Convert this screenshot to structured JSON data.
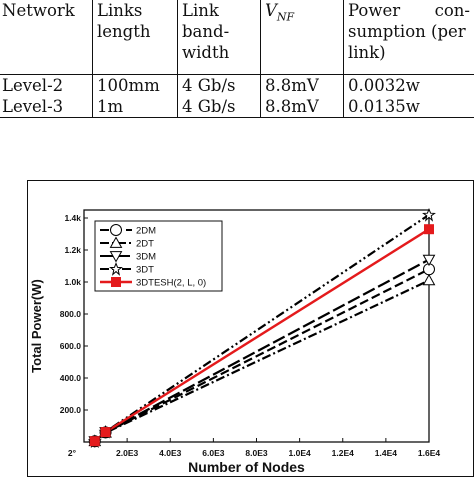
{
  "table": {
    "headers": {
      "network": "Network",
      "links_length": [
        "Links",
        "length"
      ],
      "link_bandwidth": [
        "Link",
        "band-",
        "width"
      ],
      "vnf_main": "V",
      "vnf_sub": "NF",
      "power": [
        "Power",
        "con-",
        "sumption (per",
        "link)"
      ]
    },
    "rows": [
      {
        "network": "Level-2",
        "length": "100mm",
        "bandwidth": "4 Gb/s",
        "vnf": "8.8mV",
        "power": "0.0032w"
      },
      {
        "network": "Level-3",
        "length": "1m",
        "bandwidth": "4 Gb/s",
        "vnf": "8.8mV",
        "power": "0.0135w"
      }
    ]
  },
  "chart_data": {
    "type": "line",
    "xlabel": "Number of Nodes",
    "ylabel": "Total Power(W)",
    "xlim": [
      0,
      16384
    ],
    "ylim": [
      0,
      1450
    ],
    "x_tick_labels": [
      "2°",
      "2.0E3",
      "4.0E3",
      "6.0E3",
      "8.0E3",
      "1.0E4",
      "1.2E4",
      "1.4E4",
      "1.6E4"
    ],
    "x_tick_values": [
      0,
      2048,
      4096,
      6144,
      8192,
      10240,
      12288,
      14336,
      16384
    ],
    "y_tick_labels": [
      "0",
      "200.0",
      "400.0",
      "600.0",
      "800.0",
      "1.0k",
      "1.2k",
      "1.4k"
    ],
    "y_tick_values": [
      0,
      200,
      400,
      600,
      800,
      1000,
      1200,
      1400
    ],
    "legend_position": "top-left",
    "series": [
      {
        "name": "2DM",
        "x": [
          512,
          1024,
          16384
        ],
        "y": [
          5,
          60,
          1080
        ],
        "color": "#000000",
        "dash": "dash",
        "marker": "circle"
      },
      {
        "name": "2DT",
        "x": [
          512,
          1024,
          16384
        ],
        "y": [
          5,
          58,
          1010
        ],
        "color": "#000000",
        "dash": "dashdot",
        "marker": "triangle-up"
      },
      {
        "name": "3DM",
        "x": [
          512,
          1024,
          16384
        ],
        "y": [
          5,
          62,
          1140
        ],
        "color": "#000000",
        "dash": "longdash",
        "marker": "triangle-down"
      },
      {
        "name": "3DT",
        "x": [
          512,
          1024,
          16384
        ],
        "y": [
          5,
          64,
          1420
        ],
        "color": "#000000",
        "dash": "dashdotdot",
        "marker": "star"
      },
      {
        "name": "3DTESH(2, L, 0)",
        "x": [
          512,
          1024,
          16384
        ],
        "y": [
          5,
          62,
          1330
        ],
        "color": "#e41a1c",
        "dash": "solid",
        "marker": "square"
      }
    ]
  }
}
